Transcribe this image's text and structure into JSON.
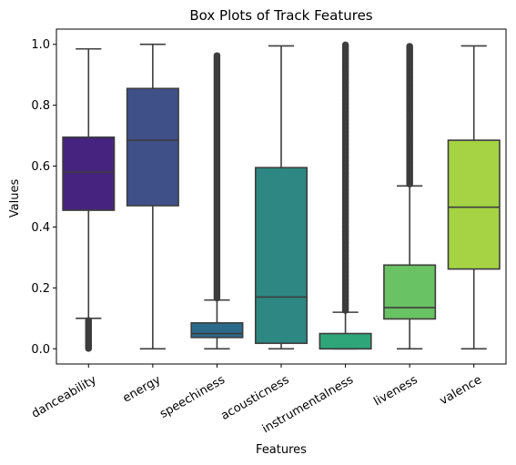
{
  "chart_data": {
    "type": "box",
    "title": "Box Plots of Track Features",
    "xlabel": "Features",
    "ylabel": "Values",
    "ylim": [
      -0.05,
      1.05
    ],
    "yticks": [
      "0.0",
      "0.2",
      "0.4",
      "0.6",
      "0.8",
      "1.0"
    ],
    "categories": [
      "danceability",
      "energy",
      "speechiness",
      "acousticness",
      "instrumentalness",
      "liveness",
      "valence"
    ],
    "boxes": [
      {
        "name": "danceability",
        "color": "#46237e",
        "whisker_low": 0.1,
        "q1": 0.455,
        "median": 0.58,
        "q3": 0.695,
        "whisker_high": 0.985,
        "outlier_low_range": [
          0.0,
          0.095
        ],
        "outlier_high_range": null
      },
      {
        "name": "energy",
        "color": "#3f5089",
        "whisker_low": 0.0,
        "q1": 0.47,
        "median": 0.685,
        "q3": 0.855,
        "whisker_high": 1.0,
        "outlier_low_range": null,
        "outlier_high_range": null
      },
      {
        "name": "speechiness",
        "color": "#2c6a8b",
        "whisker_low": 0.0,
        "q1": 0.037,
        "median": 0.05,
        "q3": 0.085,
        "whisker_high": 0.16,
        "outlier_low_range": null,
        "outlier_high_range": [
          0.165,
          0.965
        ]
      },
      {
        "name": "acousticness",
        "color": "#2e8782",
        "whisker_low": 0.0,
        "q1": 0.018,
        "median": 0.17,
        "q3": 0.595,
        "whisker_high": 0.995,
        "outlier_low_range": null,
        "outlier_high_range": null
      },
      {
        "name": "instrumentalness",
        "color": "#2ea67a",
        "whisker_low": 0.0,
        "q1": 0.0,
        "median": 0.0,
        "q3": 0.05,
        "whisker_high": 0.12,
        "outlier_low_range": null,
        "outlier_high_range": [
          0.125,
          1.0
        ]
      },
      {
        "name": "liveness",
        "color": "#69c263",
        "whisker_low": 0.0,
        "q1": 0.098,
        "median": 0.135,
        "q3": 0.275,
        "whisker_high": 0.535,
        "outlier_low_range": null,
        "outlier_high_range": [
          0.54,
          0.995
        ]
      },
      {
        "name": "valence",
        "color": "#a6d343",
        "whisker_low": 0.0,
        "q1": 0.262,
        "median": 0.465,
        "q3": 0.685,
        "whisker_high": 0.995,
        "outlier_low_range": null,
        "outlier_high_range": null
      }
    ],
    "line_color": "#3d3d3d"
  }
}
